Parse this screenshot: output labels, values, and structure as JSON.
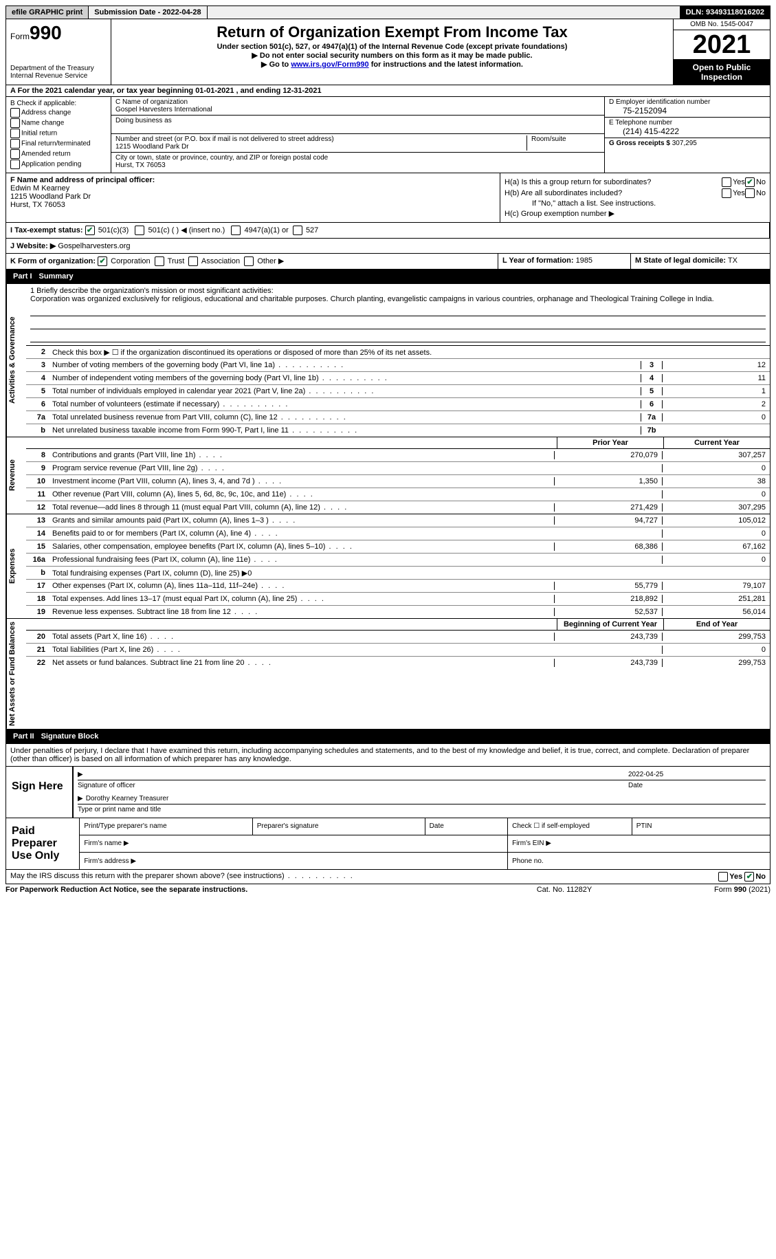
{
  "topbar": {
    "efile": "efile GRAPHIC print",
    "submission": "Submission Date - 2022-04-28",
    "dln": "DLN: 93493118016202"
  },
  "header": {
    "form_prefix": "Form",
    "form_number": "990",
    "dept": "Department of the Treasury",
    "irs": "Internal Revenue Service",
    "title": "Return of Organization Exempt From Income Tax",
    "subtitle": "Under section 501(c), 527, or 4947(a)(1) of the Internal Revenue Code (except private foundations)",
    "note1": "▶ Do not enter social security numbers on this form as it may be made public.",
    "note2_pre": "▶ Go to ",
    "note2_link": "www.irs.gov/Form990",
    "note2_post": " for instructions and the latest information.",
    "omb": "OMB No. 1545-0047",
    "year": "2021",
    "otp": "Open to Public Inspection"
  },
  "a": "A For the 2021 calendar year, or tax year beginning 01-01-2021   , and ending 12-31-2021",
  "b": {
    "title": "B Check if applicable:",
    "items": [
      "Address change",
      "Name change",
      "Initial return",
      "Final return/terminated",
      "Amended return",
      "Application pending"
    ]
  },
  "c": {
    "name_label": "C Name of organization",
    "name": "Gospel Harvesters International",
    "dba_label": "Doing business as",
    "addr_label": "Number and street (or P.O. box if mail is not delivered to street address)",
    "room_label": "Room/suite",
    "addr": "1215 Woodland Park Dr",
    "city_label": "City or town, state or province, country, and ZIP or foreign postal code",
    "city": "Hurst, TX  76053"
  },
  "d": {
    "ein_label": "D Employer identification number",
    "ein": "75-2152094",
    "phone_label": "E Telephone number",
    "phone": "(214) 415-4222",
    "gross_label": "G Gross receipts $",
    "gross": "307,295"
  },
  "f": {
    "label": "F  Name and address of principal officer:",
    "name": "Edwin M Kearney",
    "addr1": "1215 Woodland Park Dr",
    "addr2": "Hurst, TX  76053"
  },
  "h": {
    "a_label": "H(a)  Is this a group return for subordinates?",
    "b_label": "H(b)  Are all subordinates included?",
    "b_note": "If \"No,\" attach a list. See instructions.",
    "c_label": "H(c)  Group exemption number ▶",
    "yes": "Yes",
    "no": "No"
  },
  "i": {
    "label": "I  Tax-exempt status:",
    "opts": [
      "501(c)(3)",
      "501(c) (  ) ◀ (insert no.)",
      "4947(a)(1) or",
      "527"
    ]
  },
  "j": {
    "label": "J  Website: ▶",
    "val": "Gospelharvesters.org"
  },
  "k": {
    "label": "K Form of organization:",
    "opts": [
      "Corporation",
      "Trust",
      "Association",
      "Other ▶"
    ]
  },
  "l": {
    "label": "L Year of formation:",
    "val": "1985"
  },
  "m": {
    "label": "M State of legal domicile:",
    "val": "TX"
  },
  "part1": "Part I",
  "part1_title": "Summary",
  "mission": {
    "q": "1  Briefly describe the organization's mission or most significant activities:",
    "text": "Corporation was organized exclusively for religious, educational and charitable purposes. Church planting, evangelistic campaigns in various countries, orphanage and Theological Training College in India."
  },
  "line2": "Check this box ▶ ☐  if the organization discontinued its operations or disposed of more than 25% of its net assets.",
  "side": {
    "ag": "Activities & Governance",
    "rev": "Revenue",
    "exp": "Expenses",
    "na": "Net Assets or Fund Balances"
  },
  "cols": {
    "prior": "Prior Year",
    "current": "Current Year",
    "beg": "Beginning of Current Year",
    "end": "End of Year"
  },
  "lines_ag": [
    {
      "n": "3",
      "d": "Number of voting members of the governing body (Part VI, line 1a)",
      "box": "3",
      "v": "12"
    },
    {
      "n": "4",
      "d": "Number of independent voting members of the governing body (Part VI, line 1b)",
      "box": "4",
      "v": "11"
    },
    {
      "n": "5",
      "d": "Total number of individuals employed in calendar year 2021 (Part V, line 2a)",
      "box": "5",
      "v": "1"
    },
    {
      "n": "6",
      "d": "Total number of volunteers (estimate if necessary)",
      "box": "6",
      "v": "2"
    },
    {
      "n": "7a",
      "d": "Total unrelated business revenue from Part VIII, column (C), line 12",
      "box": "7a",
      "v": "0"
    },
    {
      "n": " b",
      "d": "Net unrelated business taxable income from Form 990-T, Part I, line 11",
      "box": "7b",
      "v": ""
    }
  ],
  "lines_rev": [
    {
      "n": "8",
      "d": "Contributions and grants (Part VIII, line 1h)",
      "p": "270,079",
      "c": "307,257"
    },
    {
      "n": "9",
      "d": "Program service revenue (Part VIII, line 2g)",
      "p": "",
      "c": "0"
    },
    {
      "n": "10",
      "d": "Investment income (Part VIII, column (A), lines 3, 4, and 7d )",
      "p": "1,350",
      "c": "38"
    },
    {
      "n": "11",
      "d": "Other revenue (Part VIII, column (A), lines 5, 6d, 8c, 9c, 10c, and 11e)",
      "p": "",
      "c": "0"
    },
    {
      "n": "12",
      "d": "Total revenue—add lines 8 through 11 (must equal Part VIII, column (A), line 12)",
      "p": "271,429",
      "c": "307,295"
    }
  ],
  "lines_exp": [
    {
      "n": "13",
      "d": "Grants and similar amounts paid (Part IX, column (A), lines 1–3 )",
      "p": "94,727",
      "c": "105,012"
    },
    {
      "n": "14",
      "d": "Benefits paid to or for members (Part IX, column (A), line 4)",
      "p": "",
      "c": "0"
    },
    {
      "n": "15",
      "d": "Salaries, other compensation, employee benefits (Part IX, column (A), lines 5–10)",
      "p": "68,386",
      "c": "67,162"
    },
    {
      "n": "16a",
      "d": "Professional fundraising fees (Part IX, column (A), line 11e)",
      "p": "",
      "c": "0"
    },
    {
      "n": "b",
      "d": "Total fundraising expenses (Part IX, column (D), line 25) ▶0",
      "p": "grey",
      "c": "grey"
    },
    {
      "n": "17",
      "d": "Other expenses (Part IX, column (A), lines 11a–11d, 11f–24e)",
      "p": "55,779",
      "c": "79,107"
    },
    {
      "n": "18",
      "d": "Total expenses. Add lines 13–17 (must equal Part IX, column (A), line 25)",
      "p": "218,892",
      "c": "251,281"
    },
    {
      "n": "19",
      "d": "Revenue less expenses. Subtract line 18 from line 12",
      "p": "52,537",
      "c": "56,014"
    }
  ],
  "lines_na": [
    {
      "n": "20",
      "d": "Total assets (Part X, line 16)",
      "p": "243,739",
      "c": "299,753"
    },
    {
      "n": "21",
      "d": "Total liabilities (Part X, line 26)",
      "p": "",
      "c": "0"
    },
    {
      "n": "22",
      "d": "Net assets or fund balances. Subtract line 21 from line 20",
      "p": "243,739",
      "c": "299,753"
    }
  ],
  "part2": "Part II",
  "part2_title": "Signature Block",
  "sig_decl": "Under penalties of perjury, I declare that I have examined this return, including accompanying schedules and statements, and to the best of my knowledge and belief, it is true, correct, and complete. Declaration of preparer (other than officer) is based on all information of which preparer has any knowledge.",
  "sign": {
    "here": "Sign Here",
    "sig_officer": "Signature of officer",
    "date": "Date",
    "date_val": "2022-04-25",
    "name": "Dorothy Kearney  Treasurer",
    "name_label": "Type or print name and title"
  },
  "paid": {
    "label": "Paid Preparer Use Only",
    "print": "Print/Type preparer's name",
    "sig": "Preparer's signature",
    "date": "Date",
    "check": "Check ☐ if self-employed",
    "ptin": "PTIN",
    "firm_name": "Firm's name  ▶",
    "firm_ein": "Firm's EIN ▶",
    "firm_addr": "Firm's address ▶",
    "phone": "Phone no."
  },
  "discuss": "May the IRS discuss this return with the preparer shown above? (see instructions)",
  "footer": {
    "pra": "For Paperwork Reduction Act Notice, see the separate instructions.",
    "cat": "Cat. No. 11282Y",
    "form": "Form 990 (2021)"
  }
}
